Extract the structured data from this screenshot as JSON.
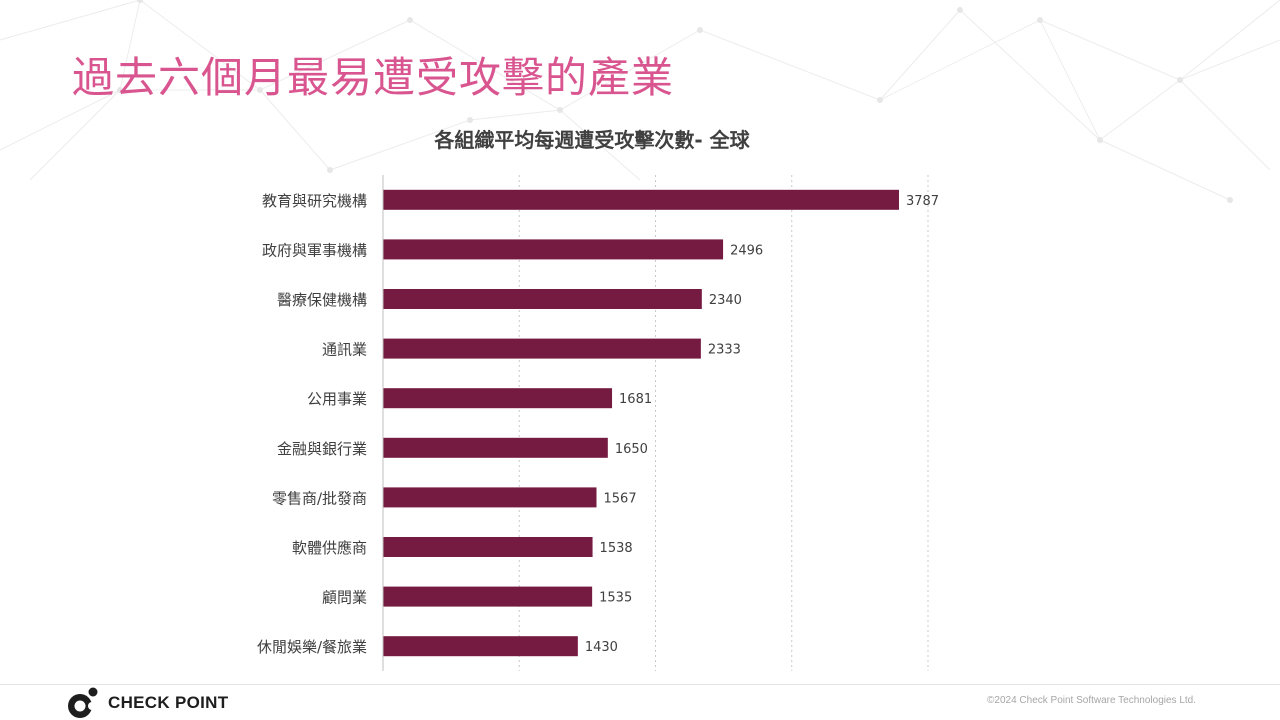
{
  "slide": {
    "title": "過去六個月最易遭受攻擊的產業"
  },
  "chart_data": {
    "type": "bar",
    "orientation": "horizontal",
    "title": "各組織平均每週遭受攻擊次數- 全球",
    "categories": [
      "教育與研究機構",
      "政府與軍事機構",
      "醫療保健機構",
      "通訊業",
      "公用事業",
      "金融與銀行業",
      "零售商/批發商",
      "軟體供應商",
      "顧問業",
      "休閒娛樂/餐旅業"
    ],
    "values": [
      3787,
      2496,
      2340,
      2333,
      1681,
      1650,
      1567,
      1538,
      1535,
      1430
    ],
    "xlim": [
      0,
      4000
    ],
    "grid": true,
    "bar_color": "#751a41",
    "data_labels": true
  },
  "footer": {
    "brand": "CHECK POINT",
    "copyright": "©2024 Check Point Software Technologies Ltd."
  },
  "colors": {
    "title": "#d9558f",
    "bar": "#751a41"
  }
}
